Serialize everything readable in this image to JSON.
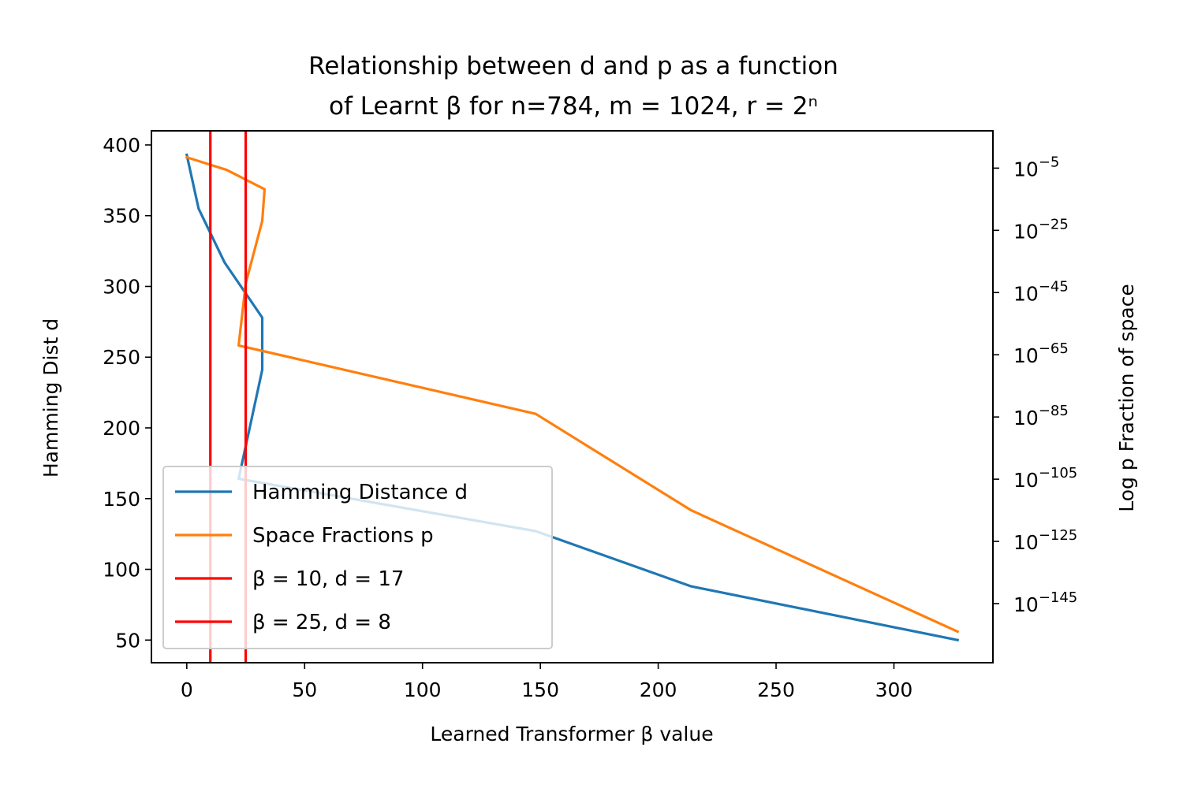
{
  "chart_data": {
    "type": "line",
    "title_line1": "Relationship between d and p as a function",
    "title_line2": "of Learnt β for n=784, m = 1024, r = 2ⁿ",
    "xlabel": "Learned Transformer β value",
    "ylabel_left": "Hamming Dist d",
    "ylabel_right": "Log p Fraction of space",
    "xlim": [
      -15,
      342
    ],
    "ylim_left": [
      34,
      410
    ],
    "ylim_right_log10": [
      -164,
      7
    ],
    "x_ticks": [
      "0",
      "50",
      "100",
      "150",
      "200",
      "250",
      "300"
    ],
    "x_tick_values": [
      0,
      50,
      100,
      150,
      200,
      250,
      300
    ],
    "y_left_ticks": [
      "50",
      "100",
      "150",
      "200",
      "250",
      "300",
      "350",
      "400"
    ],
    "y_left_tick_values": [
      50,
      100,
      150,
      200,
      250,
      300,
      350,
      400
    ],
    "y_right_ticks": [
      {
        "base": "10",
        "exp": "−5",
        "log10": -5
      },
      {
        "base": "10",
        "exp": "−25",
        "log10": -25
      },
      {
        "base": "10",
        "exp": "−45",
        "log10": -45
      },
      {
        "base": "10",
        "exp": "−65",
        "log10": -65
      },
      {
        "base": "10",
        "exp": "−85",
        "log10": -85
      },
      {
        "base": "10",
        "exp": "−105",
        "log10": -105
      },
      {
        "base": "10",
        "exp": "−125",
        "log10": -125
      },
      {
        "base": "10",
        "exp": "−145",
        "log10": -145
      }
    ],
    "legend_position": "lower-left",
    "series": [
      {
        "name": "Hamming Distance d",
        "color": "#1f77b4",
        "axis": "left",
        "points": [
          [
            0,
            393
          ],
          [
            5,
            355
          ],
          [
            16,
            317
          ],
          [
            32,
            278
          ],
          [
            32,
            241
          ],
          [
            22,
            164
          ],
          [
            148,
            127
          ],
          [
            214,
            88
          ],
          [
            327,
            50
          ]
        ]
      },
      {
        "name": "Space Fractions p",
        "color": "#ff7f0e",
        "axis": "right",
        "points": [
          [
            0,
            -1.5
          ],
          [
            17,
            -5.6
          ],
          [
            33,
            -11.8
          ],
          [
            32,
            -22
          ],
          [
            25,
            -42
          ],
          [
            22,
            -62
          ],
          [
            148,
            -84
          ],
          [
            214,
            -115
          ],
          [
            327,
            -154
          ]
        ]
      }
    ],
    "vlines": [
      {
        "name": "β = 10, d = 17",
        "x": 10,
        "color": "#ff0000"
      },
      {
        "name": "β = 25, d = 8",
        "x": 25,
        "color": "#ff0000"
      }
    ]
  }
}
